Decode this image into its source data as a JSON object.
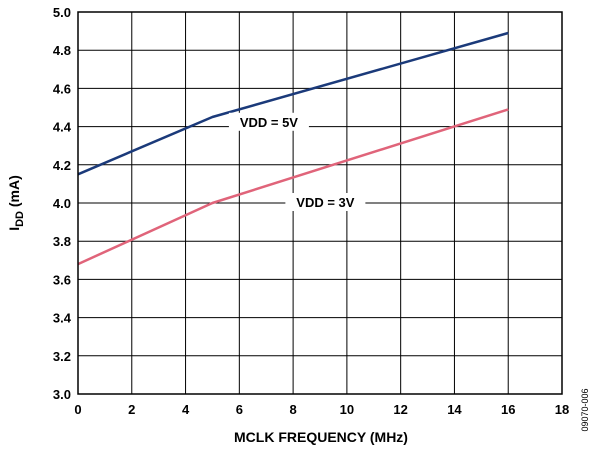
{
  "chart_data": {
    "type": "line",
    "xlabel": "MCLK FREQUENCY (MHz)",
    "ylabel": {
      "main": "I",
      "sub": "DD",
      "unit": " (mA)"
    },
    "xlim": [
      0,
      18
    ],
    "ylim": [
      3.0,
      5.0
    ],
    "x_ticks": [
      "0",
      "2",
      "4",
      "6",
      "8",
      "10",
      "12",
      "14",
      "16",
      "18"
    ],
    "y_ticks": [
      "3.0",
      "3.2",
      "3.4",
      "3.6",
      "3.8",
      "4.0",
      "4.2",
      "4.4",
      "4.6",
      "4.8",
      "5.0"
    ],
    "x_tick_values": [
      0,
      2,
      4,
      6,
      8,
      10,
      12,
      14,
      16,
      18
    ],
    "y_tick_values": [
      3.0,
      3.2,
      3.4,
      3.6,
      3.8,
      4.0,
      4.2,
      4.4,
      4.6,
      4.8,
      5.0
    ],
    "grid": true,
    "series": [
      {
        "name": "VDD = 5V",
        "color": "#1b3a7a",
        "x": [
          0,
          5,
          16
        ],
        "y": [
          4.15,
          4.45,
          4.89
        ]
      },
      {
        "name": "VDD = 3V",
        "color": "#e0647a",
        "x": [
          0,
          5,
          16
        ],
        "y": [
          3.68,
          4.0,
          4.49
        ]
      }
    ],
    "annotations": [
      {
        "text": "VDD = 5V",
        "x": 7.1,
        "y": 4.42
      },
      {
        "text": "VDD = 3V",
        "x": 9.2,
        "y": 4.0
      }
    ],
    "figure_code": "09070-006"
  }
}
